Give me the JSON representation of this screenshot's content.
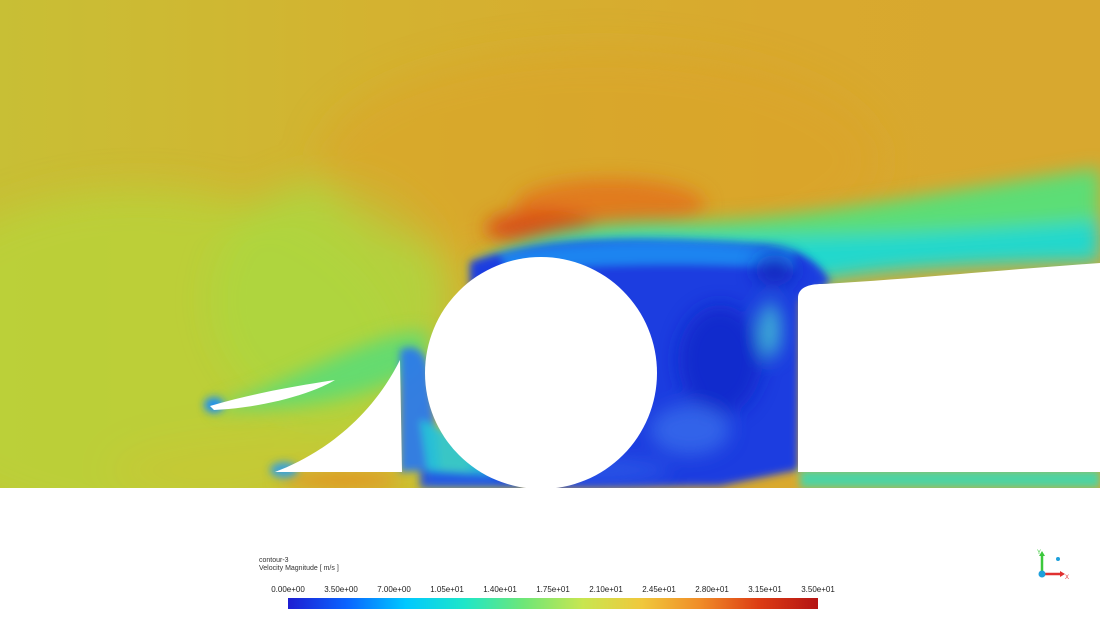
{
  "legend": {
    "title": "contour-3",
    "subtitle": "Velocity Magnitude [ m/s ]",
    "ticks": [
      "0.00e+00",
      "3.50e+00",
      "7.00e+00",
      "1.05e+01",
      "1.40e+01",
      "1.75e+01",
      "2.10e+01",
      "2.45e+01",
      "2.80e+01",
      "3.15e+01",
      "3.50e+01"
    ],
    "min": 0,
    "max": 35,
    "colormap": [
      "#1e1ed2",
      "#0a64ff",
      "#00c8ff",
      "#1ee6c8",
      "#6ee678",
      "#c8e650",
      "#f0c83c",
      "#f08c28",
      "#dc3c14",
      "#b41414"
    ]
  },
  "axes_triad": {
    "y_label": "Y",
    "x_label": "X",
    "y_color": "#3cc83c",
    "x_color": "#e03030",
    "z_color": "#1ea0dc"
  },
  "scene": {
    "ground_color": "#ffffff",
    "body_color": "#ffffff",
    "freestream_color": "#d4a82e"
  }
}
